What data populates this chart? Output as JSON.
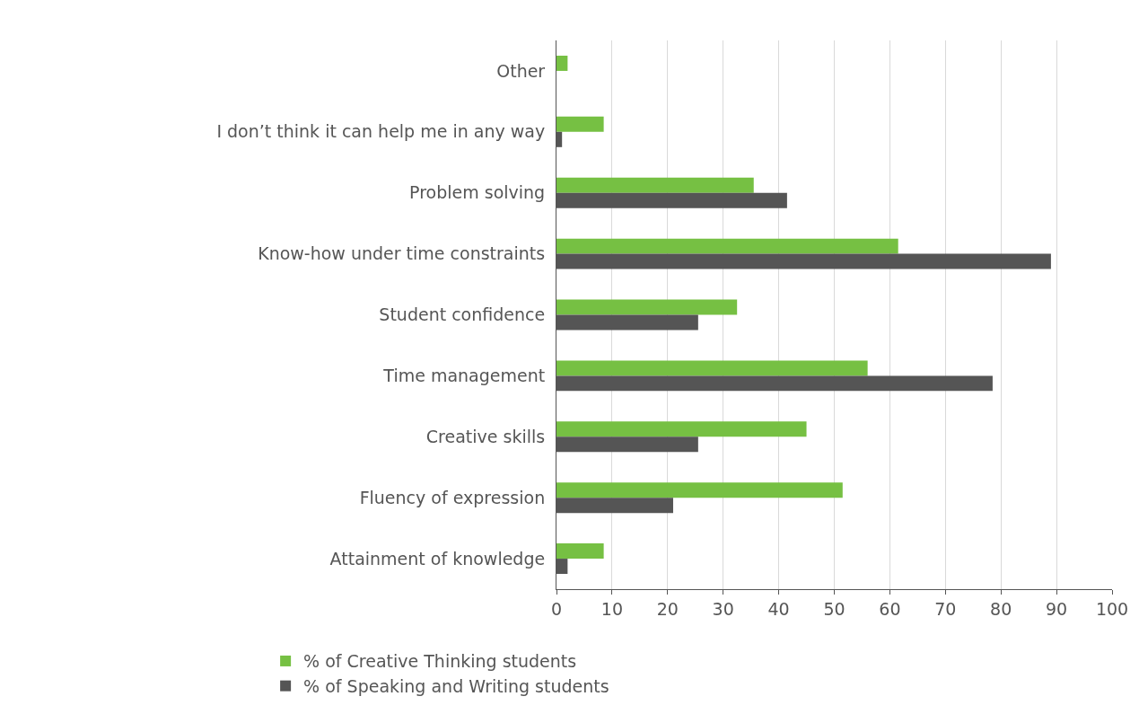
{
  "chart_data": {
    "type": "bar",
    "orientation": "horizontal",
    "categories": [
      "Other",
      "I don’t think it can help me in any way",
      "Problem solving",
      "Know-how under time constraints",
      "Student confidence",
      "Time management",
      "Creative skills",
      "Fluency of expression",
      "Attainment of knowledge"
    ],
    "series": [
      {
        "name": "% of Creative Thinking students",
        "color": "#76c043",
        "values": [
          2,
          8.5,
          35.5,
          61.5,
          32.5,
          56,
          45,
          51.5,
          8.5
        ]
      },
      {
        "name": "% of Speaking and Writing students",
        "color": "#555555",
        "values": [
          0,
          1,
          41.5,
          89,
          25.5,
          78.5,
          25.5,
          21,
          2
        ]
      }
    ],
    "xlim": [
      0,
      100
    ],
    "xticks": [
      0,
      10,
      20,
      30,
      40,
      50,
      60,
      70,
      80,
      90,
      100
    ],
    "grid": "x",
    "legend": "bottom"
  }
}
